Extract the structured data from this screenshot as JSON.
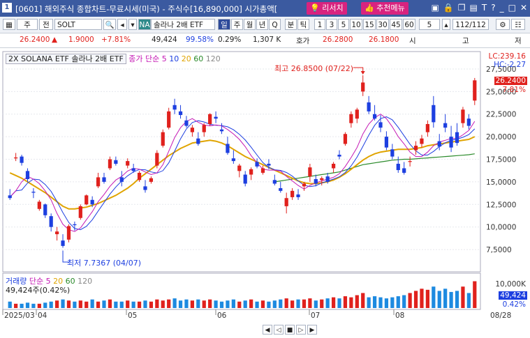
{
  "window": {
    "number": "1",
    "title": "[0601] 해외주식 종합차트-무료시세(미국) - 주식수[16,890,000] 시가총액[",
    "btn_researcher": "리서치",
    "btn_recommend": "추천메뉴",
    "icons": [
      "window-icon",
      "lock-icon",
      "copy-icon",
      "chart-icon",
      "text-icon",
      "help-icon",
      "minimize-icon",
      "maximize-icon",
      "close-icon"
    ]
  },
  "toolbar": {
    "period_type": "주",
    "btn_all": "전",
    "symbol": "SOLT",
    "name_badge": "NA",
    "name": "솔라나 2배 ETF",
    "periods": [
      "일",
      "주",
      "월",
      "년",
      "Q",
      "분",
      "틱"
    ],
    "intervals": [
      "1",
      "3",
      "5",
      "10",
      "15",
      "30",
      "45",
      "60",
      "5"
    ],
    "page": "112/112"
  },
  "quote": {
    "price": "26.2400",
    "change": "1.9000",
    "change_pct": "+7.81%",
    "volume": "49,424",
    "ratio": "99.58%",
    "turnover": "0.29%",
    "vol_k": "1,307 K",
    "ask_label": "호가",
    "ask": "26.2800",
    "bid": "26.1800",
    "open_label": "시",
    "high_label": "고",
    "low_label": "저"
  },
  "chart_legend": {
    "name": "2X SOLANA ETF  솔라나 2배 ETF",
    "ma_label": "종가 단순 5",
    "ma10": "10",
    "ma20": "20",
    "ma60": "60",
    "ma120": "120",
    "high_note": "최고 26.8500 (07/22)",
    "low_note": "최저 7.7367 (04/07)",
    "vol_label": "거래량",
    "vol_ma": "단순 5",
    "vol_current": "49,424주(0.42%)"
  },
  "right_axis": {
    "lc": "LC:239.16",
    "hc": "HC:-2.27",
    "last": "26.2400",
    "last_pct": "7.81%",
    "vol_last": "49,424",
    "vol_pct": "0.42%",
    "vol_tick": "10,000K"
  },
  "x_labels": [
    "2025/03",
    "04",
    "05",
    "06",
    "07",
    "08",
    "08/28"
  ],
  "chart_data": {
    "type": "candlestick",
    "y_ticks": [
      "27,5000",
      "25,0000",
      "22,5000",
      "20,0000",
      "17,5000",
      "15,0000",
      "12,5000",
      "10,0000",
      "7,5000"
    ],
    "ylim": [
      5.5,
      28.5
    ],
    "yticks_values": [
      27.5,
      25,
      22.5,
      20,
      17.5,
      15,
      12.5,
      10,
      7.5
    ],
    "candles": [
      [
        13.5,
        14.2,
        13.0,
        13.2
      ],
      [
        17.6,
        18.2,
        17.3,
        17.7
      ],
      [
        17.8,
        18.0,
        16.8,
        17.1
      ],
      [
        16.2,
        16.5,
        15.0,
        15.3
      ],
      [
        13.9,
        14.3,
        13.2,
        13.8
      ],
      [
        12.0,
        13.0,
        11.8,
        12.8
      ],
      [
        12.5,
        12.6,
        11.0,
        11.3
      ],
      [
        11.2,
        11.5,
        9.5,
        10.0
      ],
      [
        9.2,
        10.0,
        8.5,
        9.5
      ],
      [
        8.5,
        9.2,
        7.7,
        7.9
      ],
      [
        8.6,
        10.3,
        8.3,
        10.1
      ],
      [
        10.3,
        10.6,
        9.6,
        10.2
      ],
      [
        11.0,
        12.5,
        10.8,
        12.3
      ],
      [
        12.5,
        13.6,
        12.4,
        13.5
      ],
      [
        13.0,
        13.4,
        12.2,
        12.5
      ],
      [
        14.5,
        16.0,
        14.3,
        15.5
      ],
      [
        15.5,
        16.0,
        14.8,
        15.0
      ],
      [
        16.5,
        17.8,
        16.3,
        17.5
      ],
      [
        17.4,
        17.8,
        16.8,
        17.0
      ],
      [
        15.5,
        16.2,
        14.5,
        15.0
      ],
      [
        16.8,
        17.6,
        16.5,
        17.3
      ],
      [
        16.5,
        17.0,
        16.0,
        16.2
      ],
      [
        15.2,
        16.2,
        15.0,
        16.0
      ],
      [
        14.5,
        15.2,
        13.8,
        14.1
      ],
      [
        15.0,
        15.6,
        14.8,
        15.4
      ],
      [
        16.8,
        18.5,
        16.5,
        18.2
      ],
      [
        19.0,
        20.8,
        18.8,
        20.5
      ],
      [
        21.0,
        23.2,
        20.8,
        22.8
      ],
      [
        23.5,
        24.2,
        22.5,
        23.0
      ],
      [
        22.8,
        23.5,
        22.0,
        22.4
      ],
      [
        21.8,
        22.3,
        21.0,
        21.2
      ],
      [
        20.5,
        21.3,
        20.0,
        21.0
      ],
      [
        19.8,
        20.5,
        19.0,
        19.2
      ],
      [
        20.5,
        21.5,
        20.0,
        21.3
      ],
      [
        21.4,
        22.6,
        21.2,
        22.5
      ],
      [
        22.2,
        22.8,
        21.5,
        22.0
      ],
      [
        20.8,
        21.5,
        20.3,
        20.6
      ],
      [
        19.2,
        20.0,
        18.0,
        18.2
      ],
      [
        17.6,
        18.5,
        17.0,
        17.3
      ],
      [
        16.2,
        17.0,
        15.5,
        16.8
      ],
      [
        15.8,
        16.2,
        14.5,
        14.8
      ],
      [
        15.8,
        16.6,
        15.2,
        16.4
      ],
      [
        17.2,
        17.6,
        16.5,
        16.7
      ],
      [
        16.0,
        16.8,
        15.8,
        16.5
      ],
      [
        17.0,
        17.5,
        16.4,
        16.8
      ],
      [
        15.2,
        15.8,
        14.6,
        14.8
      ],
      [
        14.3,
        15.0,
        13.8,
        14.0
      ],
      [
        12.3,
        13.8,
        11.5,
        13.2
      ],
      [
        13.3,
        14.3,
        13.0,
        14.0
      ],
      [
        13.6,
        14.2,
        13.0,
        13.3
      ],
      [
        14.5,
        15.0,
        14.0,
        14.8
      ],
      [
        15.6,
        17.0,
        15.0,
        16.6
      ],
      [
        15.3,
        15.8,
        14.5,
        14.8
      ],
      [
        15.2,
        15.6,
        14.6,
        15.4
      ],
      [
        15.6,
        16.0,
        14.8,
        15.0
      ],
      [
        16.5,
        17.2,
        16.0,
        17.0
      ],
      [
        18.0,
        18.5,
        17.5,
        17.8
      ],
      [
        19.2,
        20.5,
        19.0,
        20.3
      ],
      [
        21.5,
        22.8,
        21.0,
        22.5
      ],
      [
        22.0,
        23.2,
        21.5,
        23.0
      ],
      [
        25.0,
        26.8,
        24.5,
        26.0
      ],
      [
        23.8,
        24.5,
        22.5,
        22.8
      ],
      [
        22.5,
        23.5,
        21.8,
        22.0
      ],
      [
        21.6,
        22.4,
        20.5,
        21.0
      ],
      [
        20.0,
        20.6,
        18.5,
        18.8
      ],
      [
        18.6,
        19.2,
        17.5,
        17.8
      ],
      [
        17.0,
        17.8,
        16.0,
        16.3
      ],
      [
        16.5,
        17.2,
        15.8,
        16.0
      ],
      [
        17.2,
        17.8,
        16.7,
        17.3
      ],
      [
        18.5,
        19.5,
        18.0,
        19.0
      ],
      [
        19.2,
        20.2,
        18.8,
        19.8
      ],
      [
        20.5,
        21.8,
        20.0,
        21.4
      ],
      [
        23.5,
        24.5,
        21.0,
        21.6
      ],
      [
        19.5,
        20.3,
        18.5,
        18.9
      ],
      [
        21.5,
        22.5,
        20.5,
        21.0
      ],
      [
        20.0,
        21.2,
        18.3,
        18.8
      ],
      [
        20.5,
        21.5,
        19.0,
        19.3
      ],
      [
        21.5,
        23.3,
        21.0,
        23.0
      ],
      [
        22.0,
        22.5,
        20.8,
        21.2
      ],
      [
        24.0,
        26.5,
        23.5,
        26.24
      ]
    ],
    "ma5": [
      13.3,
      14.0,
      15.0,
      15.6,
      15.3,
      14.8,
      14.0,
      13.0,
      11.5,
      10.3,
      9.7,
      9.5,
      9.9,
      10.8,
      11.7,
      12.8,
      13.6,
      14.5,
      15.2,
      15.6,
      16.2,
      16.5,
      16.4,
      16.1,
      15.8,
      16.0,
      16.9,
      18.4,
      19.9,
      21.0,
      21.7,
      22.0,
      21.6,
      21.3,
      21.2,
      21.3,
      21.2,
      20.8,
      20.3,
      19.7,
      18.9,
      17.9,
      17.1,
      16.4,
      16.3,
      16.3,
      16.2,
      15.6,
      15.1,
      14.6,
      14.2,
      14.6,
      14.9,
      15.1,
      15.3,
      15.5,
      15.9,
      16.7,
      17.7,
      18.8,
      20.3,
      21.4,
      22.1,
      22.5,
      22.0,
      21.1,
      20.0,
      19.2,
      18.3,
      17.8,
      17.8,
      18.3,
      19.0,
      19.4,
      19.6,
      19.8,
      19.8,
      20.2,
      20.7,
      21.7
    ],
    "ma20": [
      16.0,
      15.7,
      15.4,
      15.0,
      14.6,
      14.2,
      13.8,
      13.3,
      12.8,
      12.3,
      12.0,
      12.0,
      12.1,
      12.2,
      12.4,
      12.6,
      12.9,
      13.2,
      13.5,
      13.9,
      14.3,
      14.8,
      15.4,
      15.9,
      16.4,
      16.9,
      17.4,
      17.9,
      18.3,
      18.7,
      19.0,
      19.3,
      19.4,
      19.5,
      19.6,
      19.5,
      19.3,
      19.0,
      18.6,
      18.2,
      17.8,
      17.5,
      17.2,
      16.9,
      16.6,
      16.3,
      16.0,
      15.7,
      15.4,
      15.1,
      14.9,
      14.8,
      14.8,
      14.9,
      15.0,
      15.2,
      15.5,
      15.9,
      16.4,
      16.9,
      17.4,
      17.8,
      18.1,
      18.3,
      18.4,
      18.5,
      18.6,
      18.6,
      18.6,
      18.7,
      18.8,
      19.0,
      19.1,
      19.2,
      19.3,
      19.4,
      19.5,
      19.6,
      19.7,
      20.0
    ],
    "ma60": [
      null,
      null,
      null,
      null,
      null,
      null,
      null,
      null,
      null,
      null,
      null,
      null,
      null,
      null,
      null,
      null,
      null,
      null,
      null,
      null,
      null,
      null,
      null,
      null,
      null,
      null,
      null,
      null,
      null,
      null,
      null,
      null,
      null,
      null,
      null,
      null,
      null,
      null,
      null,
      null,
      null,
      null,
      null,
      null,
      null,
      15.0,
      15.1,
      15.2,
      15.3,
      15.4,
      15.5,
      15.6,
      15.7,
      15.8,
      15.9,
      16.0,
      16.1,
      16.3,
      16.5,
      16.7,
      16.9,
      17.0,
      17.1,
      17.2,
      17.3,
      17.4,
      17.45,
      17.5,
      17.5,
      17.55,
      17.6,
      17.65,
      17.7,
      17.75,
      17.8,
      17.85,
      17.9,
      17.95,
      18.0,
      18.1
    ],
    "volumes": [
      0.3,
      0.2,
      0.2,
      0.25,
      0.2,
      0.2,
      0.25,
      0.3,
      0.35,
      0.4,
      0.35,
      0.3,
      0.35,
      0.3,
      0.4,
      0.3,
      0.35,
      0.4,
      0.3,
      0.3,
      0.35,
      0.3,
      0.3,
      0.35,
      0.3,
      0.4,
      0.35,
      0.4,
      0.45,
      0.35,
      0.4,
      0.35,
      0.4,
      0.35,
      0.4,
      0.35,
      0.3,
      0.35,
      0.4,
      0.3,
      0.35,
      0.4,
      0.3,
      0.35,
      0.3,
      0.35,
      0.4,
      0.45,
      0.35,
      0.4,
      0.4,
      0.45,
      0.35,
      0.4,
      0.45,
      0.5,
      0.45,
      0.55,
      0.5,
      0.6,
      0.7,
      0.5,
      0.55,
      0.5,
      0.45,
      0.5,
      0.55,
      0.6,
      0.7,
      0.8,
      0.9,
      0.85,
      1.0,
      0.8,
      0.9,
      0.75,
      0.8,
      1.0,
      0.7,
      1.25
    ]
  }
}
